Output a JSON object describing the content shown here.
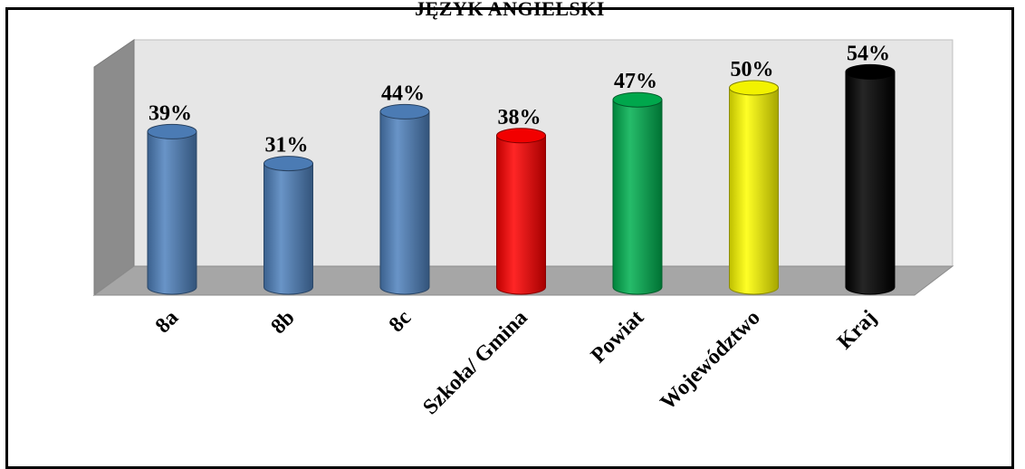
{
  "chart_data": {
    "type": "bar",
    "title": "JĘZYK ANGIELSKI",
    "categories": [
      "8a",
      "8b",
      "8c",
      "Szkoła/ Gmina",
      "Powiat",
      "Województwo",
      "Kraj"
    ],
    "values": [
      39,
      31,
      44,
      38,
      47,
      50,
      54
    ],
    "value_labels": [
      "39%",
      "31%",
      "44%",
      "38%",
      "47%",
      "50%",
      "54%"
    ],
    "colors": [
      "#4F81BD",
      "#4F81BD",
      "#4F81BD",
      "#FF0000",
      "#00B050",
      "#FFFF00",
      "#000000"
    ],
    "ylim": [
      0,
      60
    ],
    "grid": false,
    "style": "3d-cylinder"
  }
}
